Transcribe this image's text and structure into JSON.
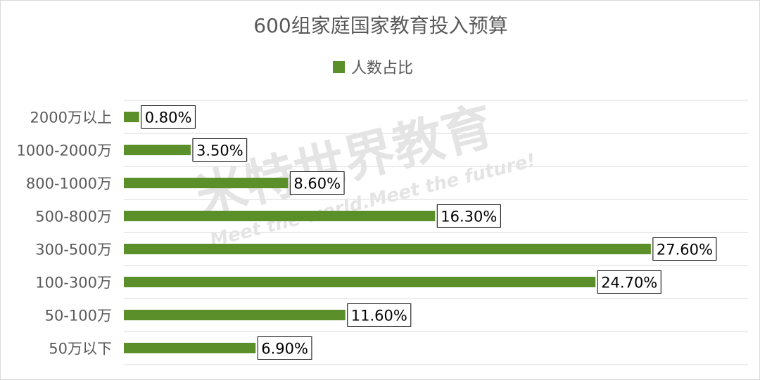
{
  "chart_data": {
    "type": "bar",
    "orientation": "horizontal",
    "title": "600组家庭国家教育投入预算",
    "categories": [
      "2000万以上",
      "1000-2000万",
      "800-1000万",
      "500-800万",
      "300-500万",
      "100-300万",
      "50-100万",
      "50万以下"
    ],
    "series": [
      {
        "name": "人数占比",
        "values": [
          0.8,
          3.5,
          8.6,
          16.3,
          27.6,
          24.7,
          11.6,
          6.9
        ],
        "labels": [
          "0.80%",
          "3.50%",
          "8.60%",
          "16.30%",
          "27.60%",
          "24.70%",
          "11.60%",
          "6.90%"
        ]
      }
    ],
    "xlim": [
      0,
      30
    ],
    "grid": true,
    "legend_position": "top",
    "colors": {
      "bar": "#5b8f29",
      "grid": "#d9d9d9",
      "text": "#595959"
    }
  },
  "watermark": {
    "brand": "米特世界教育",
    "slogan": "Meet the world.Meet the future!"
  }
}
